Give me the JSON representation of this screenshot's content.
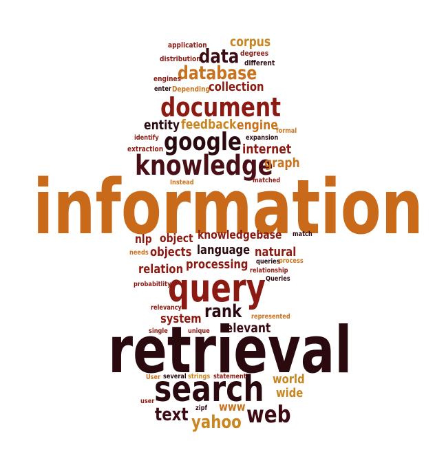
{
  "word_cloud": {
    "words": [
      {
        "text": "information",
        "color": "#c86a1a"
      },
      {
        "text": "retrieval",
        "color": "#2a0a0e"
      },
      {
        "text": "query",
        "color": "#8a1a12"
      },
      {
        "text": "search",
        "color": "#2a0a0e"
      },
      {
        "text": "knowledge",
        "color": "#4a0f16"
      },
      {
        "text": "document",
        "color": "#8a1a12"
      },
      {
        "text": "google",
        "color": "#2a0a0e"
      },
      {
        "text": "database",
        "color": "#c8731f"
      },
      {
        "text": "data",
        "color": "#3b0a12"
      },
      {
        "text": "corpus",
        "color": "#c9851f"
      },
      {
        "text": "collection",
        "color": "#8a1a12"
      },
      {
        "text": "entity",
        "color": "#2a0a0e"
      },
      {
        "text": "feedback",
        "color": "#c9851f"
      },
      {
        "text": "engine",
        "color": "#c8731f"
      },
      {
        "text": "internet",
        "color": "#8a1a12"
      },
      {
        "text": "graph",
        "color": "#c8731f"
      },
      {
        "text": "web",
        "color": "#3b0a12"
      },
      {
        "text": "text",
        "color": "#3b0a12"
      },
      {
        "text": "yahoo",
        "color": "#c9851f"
      },
      {
        "text": "www",
        "color": "#c8731f"
      },
      {
        "text": "world",
        "color": "#c9851f"
      },
      {
        "text": "wide",
        "color": "#c9851f"
      },
      {
        "text": "rank",
        "color": "#2a0a0e"
      },
      {
        "text": "relevant",
        "color": "#3b0a12"
      },
      {
        "text": "system",
        "color": "#8a1a12"
      },
      {
        "text": "processing",
        "color": "#8a1a12"
      },
      {
        "text": "relation",
        "color": "#8a1a12"
      },
      {
        "text": "natural",
        "color": "#8a1a12"
      },
      {
        "text": "language",
        "color": "#2a0a0e"
      },
      {
        "text": "knowledgebase",
        "color": "#8a1a12"
      },
      {
        "text": "object",
        "color": "#8a1a12"
      },
      {
        "text": "objects",
        "color": "#8a1a12"
      },
      {
        "text": "nlp",
        "color": "#8a1a12"
      },
      {
        "text": "application",
        "color": "#8a1a12"
      },
      {
        "text": "distribution",
        "color": "#8a1a12"
      },
      {
        "text": "degrees",
        "color": "#8a1a12"
      },
      {
        "text": "different",
        "color": "#2a0a0e"
      },
      {
        "text": "engines",
        "color": "#8a1a12"
      },
      {
        "text": "enter",
        "color": "#2a0a0e"
      },
      {
        "text": "Depending",
        "color": "#c8731f"
      },
      {
        "text": "formal",
        "color": "#c8731f"
      },
      {
        "text": "identify",
        "color": "#8a1a12"
      },
      {
        "text": "expansion",
        "color": "#2a0a0e"
      },
      {
        "text": "extraction",
        "color": "#8a1a12"
      },
      {
        "text": "Instead",
        "color": "#c8731f"
      },
      {
        "text": "matched",
        "color": "#8a1a12"
      },
      {
        "text": "match",
        "color": "#2a0a0e"
      },
      {
        "text": "needs",
        "color": "#c8731f"
      },
      {
        "text": "queries",
        "color": "#2a0a0e"
      },
      {
        "text": "process",
        "color": "#c8731f"
      },
      {
        "text": "relationship",
        "color": "#8a1a12"
      },
      {
        "text": "Queries",
        "color": "#2a0a0e"
      },
      {
        "text": "probabitlity",
        "color": "#8a1a12"
      },
      {
        "text": "relevancy",
        "color": "#8a1a12"
      },
      {
        "text": "represented",
        "color": "#c8731f"
      },
      {
        "text": "single",
        "color": "#8a1a12"
      },
      {
        "text": "unique",
        "color": "#8a1a12"
      },
      {
        "text": "User",
        "color": "#c8731f"
      },
      {
        "text": "several",
        "color": "#2a0a0e"
      },
      {
        "text": "strings",
        "color": "#c9851f"
      },
      {
        "text": "statements",
        "color": "#8a1a12"
      },
      {
        "text": "user",
        "color": "#8a1a12"
      },
      {
        "text": "zipf",
        "color": "#2a0a0e"
      }
    ]
  }
}
